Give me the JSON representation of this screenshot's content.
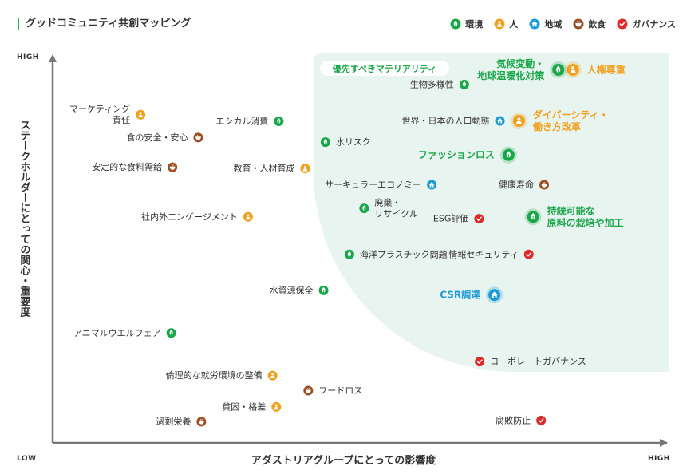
{
  "title": "グッドコミュニティ共創マッピング",
  "legend": [
    {
      "key": "env",
      "label": "環境"
    },
    {
      "key": "people",
      "label": "人"
    },
    {
      "key": "region",
      "label": "地域"
    },
    {
      "key": "food",
      "label": "飲食"
    },
    {
      "key": "gov",
      "label": "ガバナンス"
    }
  ],
  "colors": {
    "env": "#1aa74a",
    "people": "#f0a01d",
    "region": "#1d9bd6",
    "food": "#9a4e22",
    "gov": "#dd2b2b",
    "zone": "#e8f4f0",
    "axis": "#777777",
    "priority_text": "#1aa74a"
  },
  "icons": {
    "env": "leaf-icon",
    "people": "person-icon",
    "region": "house-icon",
    "food": "bowl-icon",
    "gov": "check-icon"
  },
  "priority_label": "優先すべきマテリアリティ",
  "chart_data": {
    "type": "scatter",
    "title": "グッドコミュニティ共創マッピング",
    "xlabel": "アダストリアグループにとっての影響度",
    "ylabel": "ステークホルダーにとっての関心・重要度",
    "x_low": "LOW",
    "x_high": "HIGH",
    "y_high": "HIGH",
    "xlim": [
      0,
      100
    ],
    "ylim": [
      0,
      100
    ],
    "points": [
      {
        "label": "マーケティング\n責任",
        "cat": "people",
        "x": 14.3,
        "y": 84.8,
        "side": "left"
      },
      {
        "label": "食の安全・安心",
        "cat": "food",
        "x": 23.7,
        "y": 78.9,
        "side": "left"
      },
      {
        "label": "安定的な食料需給",
        "cat": "food",
        "x": 19.5,
        "y": 71.2,
        "side": "left"
      },
      {
        "label": "エシカル消費",
        "cat": "env",
        "x": 36.8,
        "y": 83.1,
        "side": "left"
      },
      {
        "label": "教育・人材育成",
        "cat": "people",
        "x": 41.1,
        "y": 70.9,
        "side": "left"
      },
      {
        "label": "社内外エンゲージメント",
        "cat": "people",
        "x": 31.8,
        "y": 58.4,
        "side": "left"
      },
      {
        "label": "水資源保全",
        "cat": "env",
        "x": 44.1,
        "y": 39.4,
        "side": "left"
      },
      {
        "label": "アニマルウエルフェア",
        "cat": "env",
        "x": 19.3,
        "y": 28.4,
        "side": "left"
      },
      {
        "label": "倫理的な就労環境の整備",
        "cat": "people",
        "x": 35.8,
        "y": 17.4,
        "side": "left"
      },
      {
        "label": "フードロス",
        "cat": "food",
        "x": 41.6,
        "y": 13.5,
        "side": "right"
      },
      {
        "label": "貧困・格差",
        "cat": "people",
        "x": 36.4,
        "y": 9.3,
        "side": "left"
      },
      {
        "label": "過剰栄養",
        "cat": "food",
        "x": 24.2,
        "y": 5.5,
        "side": "left"
      },
      {
        "label": "水リスク",
        "cat": "env",
        "x": 44.4,
        "y": 77.7,
        "side": "right"
      },
      {
        "label": "生物多様性",
        "cat": "env",
        "x": 67.0,
        "y": 92.6,
        "side": "left"
      },
      {
        "label": "世界・日本の人口動態",
        "cat": "region",
        "x": 72.8,
        "y": 83.2,
        "side": "left"
      },
      {
        "label": "サーキュラーエコノミー",
        "cat": "region",
        "x": 61.7,
        "y": 66.7,
        "side": "left"
      },
      {
        "label": "健康寿命",
        "cat": "food",
        "x": 80.0,
        "y": 66.7,
        "side": "left"
      },
      {
        "label": "廃棄・\nリサイクル",
        "cat": "env",
        "x": 50.7,
        "y": 60.6,
        "side": "right"
      },
      {
        "label": "ESG評価",
        "cat": "gov",
        "x": 69.4,
        "y": 57.9,
        "side": "left"
      },
      {
        "label": "海洋プラスチック問題",
        "cat": "env",
        "x": 48.3,
        "y": 48.7,
        "side": "right"
      },
      {
        "label": "情報セキュリティ",
        "cat": "gov",
        "x": 77.5,
        "y": 48.7,
        "side": "left"
      },
      {
        "label": "コーポレートガバナンス",
        "cat": "gov",
        "x": 69.5,
        "y": 21.0,
        "side": "right"
      },
      {
        "label": "腐敗防止",
        "cat": "gov",
        "x": 79.5,
        "y": 5.8,
        "side": "left"
      },
      {
        "label": "気候変動・\n地球温暖化対策",
        "cat": "env",
        "x": 82.3,
        "y": 96.4,
        "side": "left",
        "priority": true
      },
      {
        "label": "人権尊重",
        "cat": "people",
        "x": 84.7,
        "y": 96.4,
        "side": "right",
        "priority": true
      },
      {
        "label": "ダイバーシティ・\n働き方改革",
        "cat": "people",
        "x": 75.9,
        "y": 83.2,
        "side": "right",
        "priority": true
      },
      {
        "label": "ファッションロス",
        "cat": "env",
        "x": 74.2,
        "y": 74.4,
        "side": "left",
        "priority": true
      },
      {
        "label": "持続可能な\n原料の栽培や加工",
        "cat": "env",
        "x": 78.2,
        "y": 58.4,
        "side": "right",
        "priority": true
      },
      {
        "label": "CSR調達",
        "cat": "region",
        "x": 71.9,
        "y": 38.2,
        "side": "left",
        "priority": true
      }
    ]
  }
}
